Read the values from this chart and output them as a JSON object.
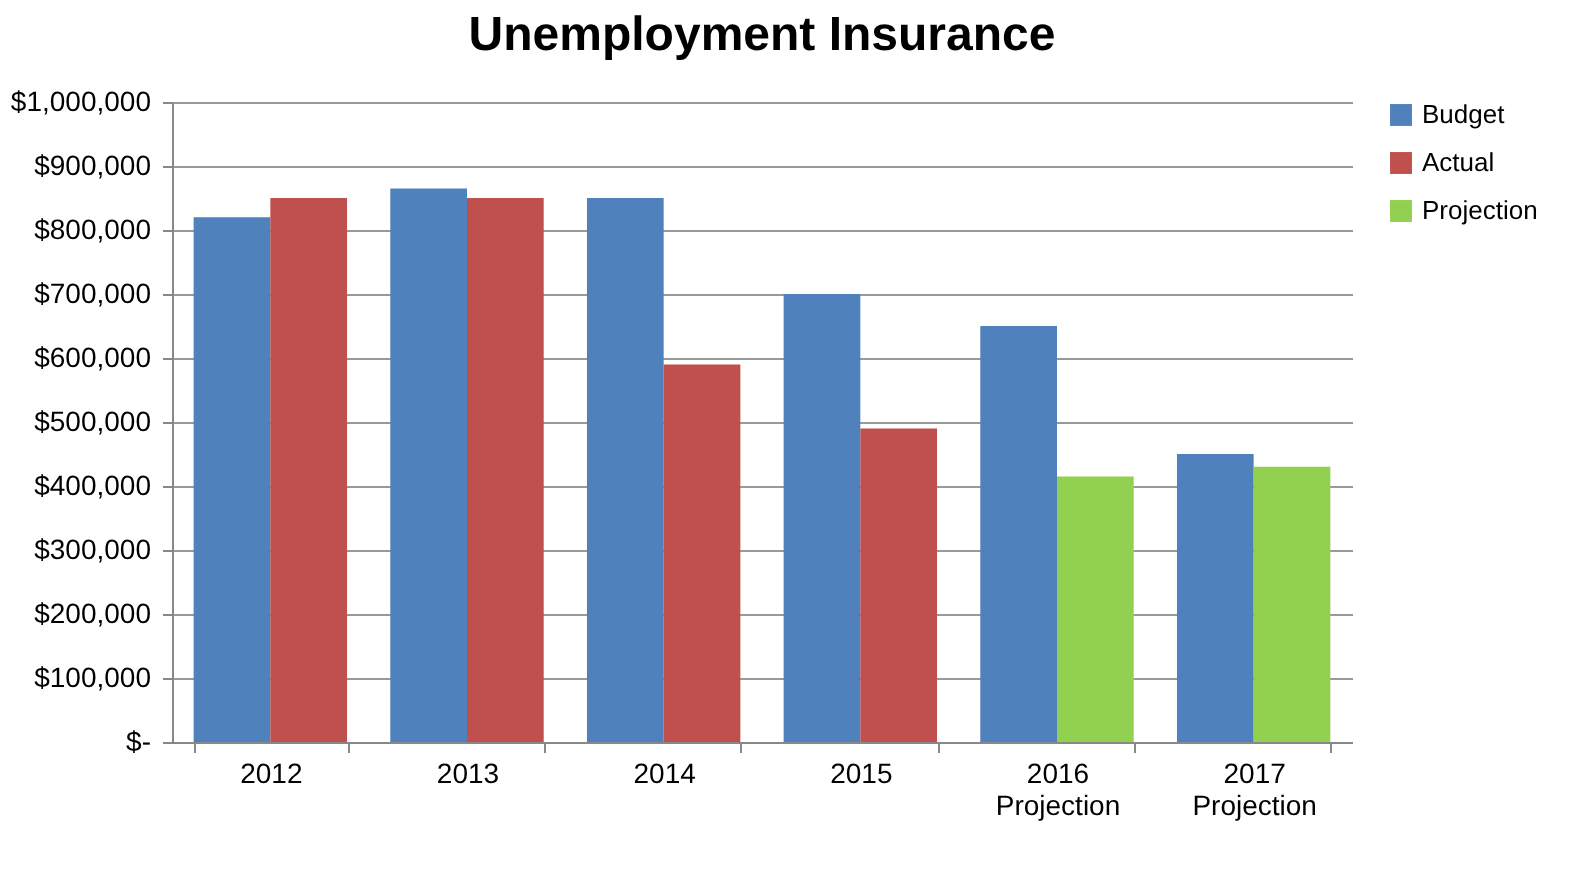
{
  "chart_data": {
    "type": "bar",
    "title": "Unemployment Insurance",
    "categories": [
      "2012",
      "2013",
      "2014",
      "2015",
      "2016 Projection",
      "2017 Projection"
    ],
    "series": [
      {
        "name": "Budget",
        "color": "#4f81bd",
        "values": [
          820000,
          865000,
          850000,
          700000,
          650000,
          450000
        ]
      },
      {
        "name": "Actual",
        "color": "#c0504d",
        "values": [
          850000,
          850000,
          590000,
          490000,
          null,
          null
        ]
      },
      {
        "name": "Projection",
        "color": "#92d050",
        "values": [
          null,
          null,
          null,
          null,
          415000,
          430000
        ]
      }
    ],
    "ylim": [
      0,
      1000000
    ],
    "yticks": [
      {
        "value": 0,
        "label": "$-"
      },
      {
        "value": 100000,
        "label": "$100,000"
      },
      {
        "value": 200000,
        "label": "$200,000"
      },
      {
        "value": 300000,
        "label": "$300,000"
      },
      {
        "value": 400000,
        "label": "$400,000"
      },
      {
        "value": 500000,
        "label": "$500,000"
      },
      {
        "value": 600000,
        "label": "$600,000"
      },
      {
        "value": 700000,
        "label": "$700,000"
      },
      {
        "value": 800000,
        "label": "$800,000"
      },
      {
        "value": 900000,
        "label": "$900,000"
      },
      {
        "value": 1000000,
        "label": "$1,000,000"
      }
    ],
    "grid": "y",
    "legend": "right"
  }
}
